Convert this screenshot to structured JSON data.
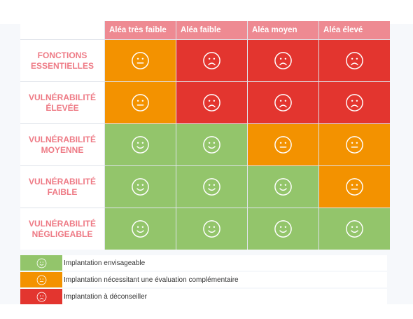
{
  "colors": {
    "green": "#93c56b",
    "orange": "#f39200",
    "red": "#e3352f",
    "header_pink": "#ee8a92",
    "row_text": "#ee7a85"
  },
  "columns": [
    "Aléa très faible",
    "Aléa faible",
    "Aléa moyen",
    "Aléa élevé"
  ],
  "rows": [
    {
      "label": "FONCTIONS ESSENTIELLES",
      "cells": [
        "neutral",
        "sad",
        "sad",
        "sad"
      ]
    },
    {
      "label": "VULNÉRABILITÉ ÉLEVÉE",
      "cells": [
        "neutral",
        "sad",
        "sad",
        "sad"
      ]
    },
    {
      "label": "VULNÉRABILITÉ MOYENNE",
      "cells": [
        "happy",
        "happy",
        "neutral",
        "neutral"
      ]
    },
    {
      "label": "VULNÉRABILITÉ FAIBLE",
      "cells": [
        "happy",
        "happy",
        "happy",
        "neutral"
      ]
    },
    {
      "label": "VULNÉRABILITÉ NÉGLIGEABLE",
      "cells": [
        "happy",
        "happy",
        "happy",
        "happy"
      ]
    }
  ],
  "legend": [
    {
      "level": "happy",
      "icon": "smiley-happy-icon",
      "label": "Implantation envisageable"
    },
    {
      "level": "neutral",
      "icon": "smiley-neutral-icon",
      "label": "Implantation nécessitant une évaluation complémentaire"
    },
    {
      "level": "sad",
      "icon": "smiley-sad-icon",
      "label": "Implantation à déconseiller"
    }
  ]
}
